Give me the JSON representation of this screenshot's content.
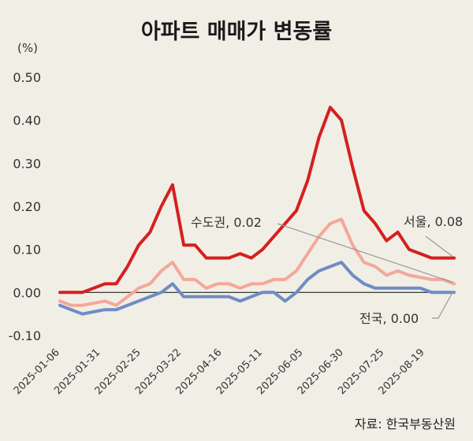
{
  "chart_data": {
    "type": "line",
    "title": "아파트 매매가 변동률",
    "unit_label": "(%)",
    "source": "자료: 한국부동산원",
    "ylim": [
      -0.1,
      0.5
    ],
    "y_ticks": [
      "0.50",
      "0.40",
      "0.30",
      "0.20",
      "0.10",
      "0.00",
      "-0.10"
    ],
    "y_tick_values": [
      0.5,
      0.4,
      0.3,
      0.2,
      0.1,
      0.0,
      -0.1
    ],
    "x_ticks": [
      "2025-01-06",
      "2025-01-31",
      "2025-02-25",
      "2025-03-22",
      "2025-04-16",
      "2025-05-11",
      "2025-06-05",
      "2025-06-30",
      "2025-07-25",
      "2025-08-19"
    ],
    "grid": false,
    "series": [
      {
        "name": "서울",
        "color": "#d42020",
        "values": [
          0.0,
          0.0,
          0.0,
          0.01,
          0.02,
          0.02,
          0.06,
          0.11,
          0.14,
          0.2,
          0.25,
          0.11,
          0.11,
          0.08,
          0.08,
          0.08,
          0.09,
          0.08,
          0.1,
          0.13,
          0.16,
          0.19,
          0.26,
          0.36,
          0.43,
          0.4,
          0.29,
          0.19,
          0.16,
          0.12,
          0.14,
          0.1,
          0.09,
          0.08,
          0.08,
          0.08
        ]
      },
      {
        "name": "수도권",
        "color": "#f4a898",
        "values": [
          -0.02,
          -0.03,
          -0.03,
          -0.025,
          -0.02,
          -0.03,
          -0.01,
          0.01,
          0.02,
          0.05,
          0.07,
          0.03,
          0.03,
          0.01,
          0.02,
          0.02,
          0.01,
          0.02,
          0.02,
          0.03,
          0.03,
          0.05,
          0.09,
          0.13,
          0.16,
          0.17,
          0.11,
          0.07,
          0.06,
          0.04,
          0.05,
          0.04,
          0.035,
          0.03,
          0.03,
          0.02
        ]
      },
      {
        "name": "전국",
        "color": "#6f8cc4",
        "values": [
          -0.03,
          -0.04,
          -0.05,
          -0.045,
          -0.04,
          -0.04,
          -0.03,
          -0.02,
          -0.01,
          0.0,
          0.02,
          -0.01,
          -0.01,
          -0.01,
          -0.01,
          -0.01,
          -0.02,
          -0.01,
          0.0,
          0.0,
          -0.02,
          0.0,
          0.03,
          0.05,
          0.06,
          0.07,
          0.04,
          0.02,
          0.01,
          0.01,
          0.01,
          0.01,
          0.01,
          0.0,
          0.0,
          0.0
        ]
      }
    ],
    "callouts": [
      {
        "series": "서울",
        "text": "서울, 0.08"
      },
      {
        "series": "수도권",
        "text": "수도권, 0.02"
      },
      {
        "series": "전국",
        "text": "전국, 0.00"
      }
    ]
  }
}
